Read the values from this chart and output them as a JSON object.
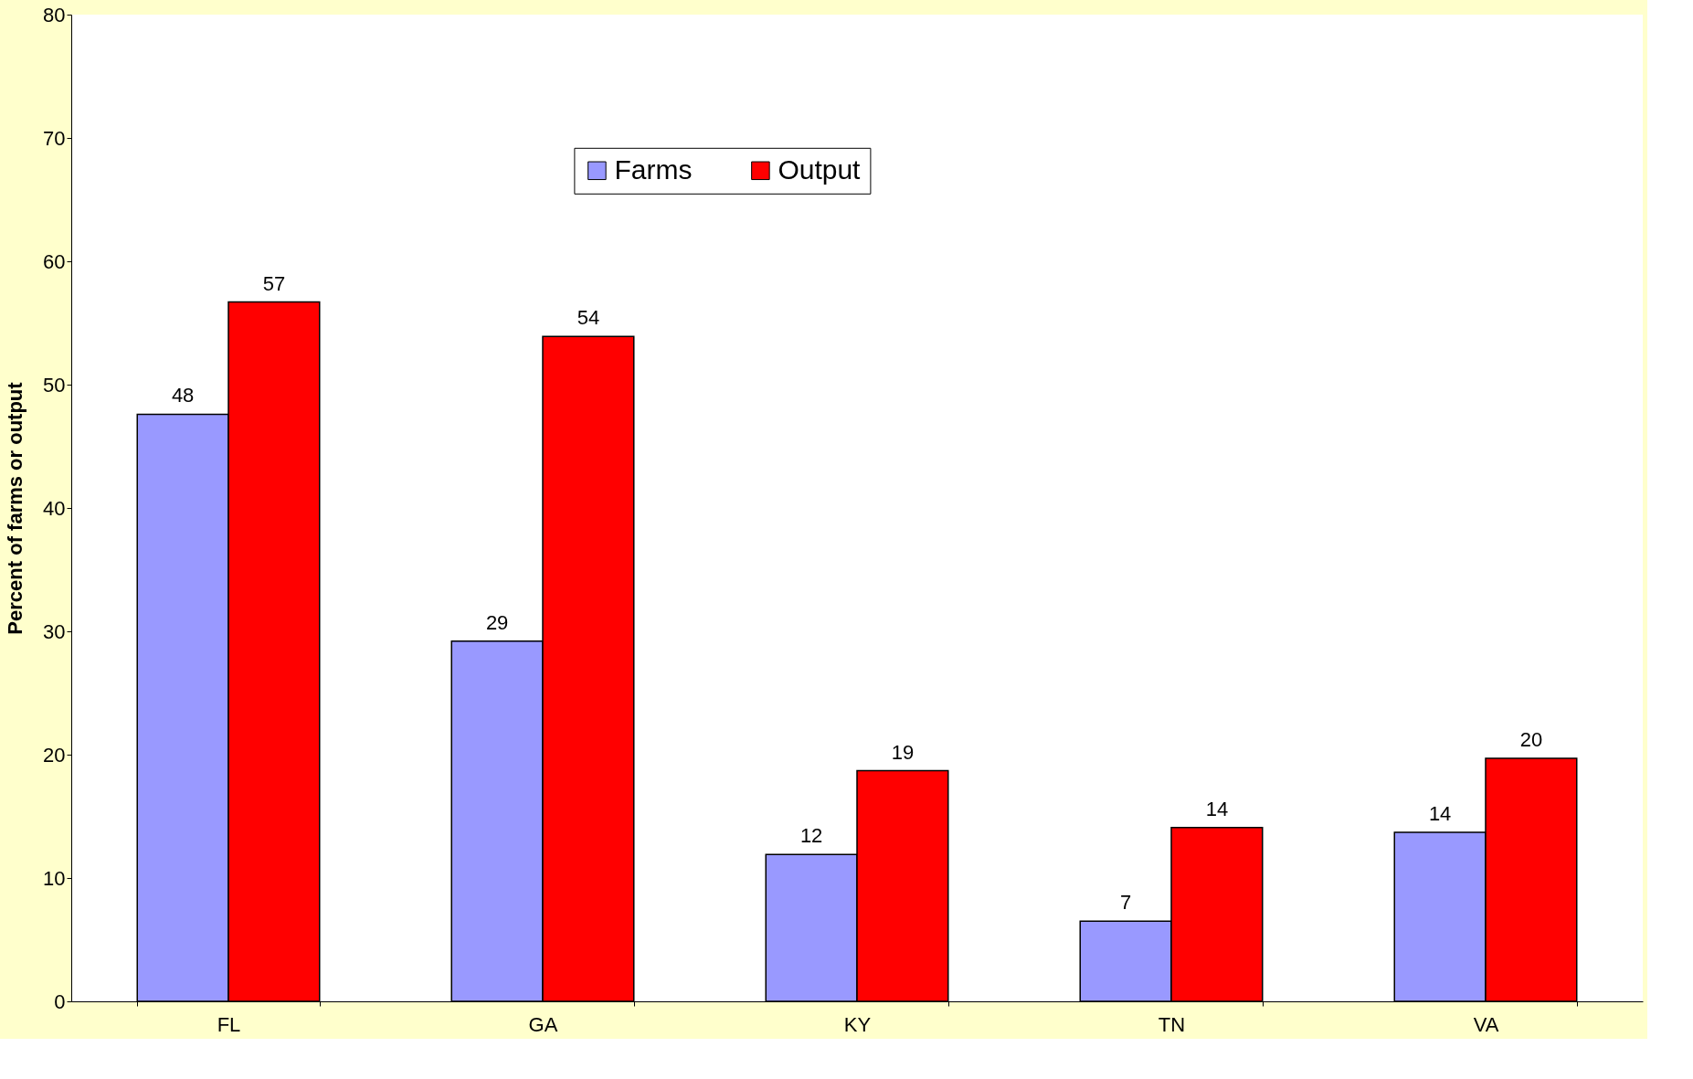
{
  "chart_data": {
    "type": "bar",
    "ylabel": "Percent of farms or output",
    "categories": [
      "FL",
      "GA",
      "KY",
      "TN",
      "VA"
    ],
    "series": [
      {
        "name": "Farms",
        "color": "#9999ff",
        "values": [
          47.6,
          29.2,
          11.9,
          6.5,
          13.7
        ],
        "value_labels": [
          "48",
          "29",
          "12",
          "7",
          "14"
        ]
      },
      {
        "name": "Output",
        "color": "#ff0000",
        "values": [
          56.7,
          53.9,
          18.7,
          14.1,
          19.7
        ],
        "value_labels": [
          "57",
          "54",
          "19",
          "14",
          "20"
        ]
      }
    ],
    "ylim": [
      0,
      80
    ],
    "yticks": [
      0,
      10,
      20,
      30,
      40,
      50,
      60,
      70,
      80
    ],
    "grid": false,
    "legend": "top"
  }
}
